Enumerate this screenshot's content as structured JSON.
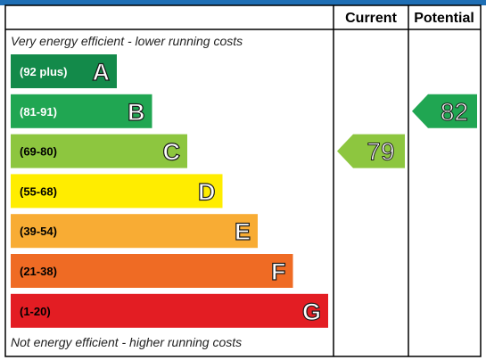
{
  "header": {
    "current_label": "Current",
    "potential_label": "Potential"
  },
  "notes": {
    "top": "Very energy efficient - lower running costs",
    "bottom": "Not energy efficient - higher running costs"
  },
  "colors": {
    "frame": "#000000",
    "top_strip": "#1f6fb5"
  },
  "chart_data": {
    "type": "bar",
    "bands": [
      {
        "letter": "A",
        "range": "(92 plus)",
        "color": "#138a4a",
        "text_color": "#ffffff",
        "letter_fill": "#ffffff"
      },
      {
        "letter": "B",
        "range": "(81-91)",
        "color": "#20a652",
        "text_color": "#ffffff",
        "letter_fill": "#ffffff"
      },
      {
        "letter": "C",
        "range": "(69-80)",
        "color": "#8dc63f",
        "text_color": "#000000",
        "letter_fill": "#ffffff"
      },
      {
        "letter": "D",
        "range": "(55-68)",
        "color": "#ffed00",
        "text_color": "#000000",
        "letter_fill": "#ffffff"
      },
      {
        "letter": "E",
        "range": "(39-54)",
        "color": "#f8ac34",
        "text_color": "#000000",
        "letter_fill": "#ffffff"
      },
      {
        "letter": "F",
        "range": "(21-38)",
        "color": "#ef6b24",
        "text_color": "#000000",
        "letter_fill": "#ffffff"
      },
      {
        "letter": "G",
        "range": "(1-20)",
        "color": "#e31d23",
        "text_color": "#000000",
        "letter_fill": "#ffffff"
      }
    ],
    "current": {
      "value": 79,
      "band": "C",
      "color": "#8dc63f"
    },
    "potential": {
      "value": 82,
      "band": "B",
      "color": "#20a652"
    }
  }
}
